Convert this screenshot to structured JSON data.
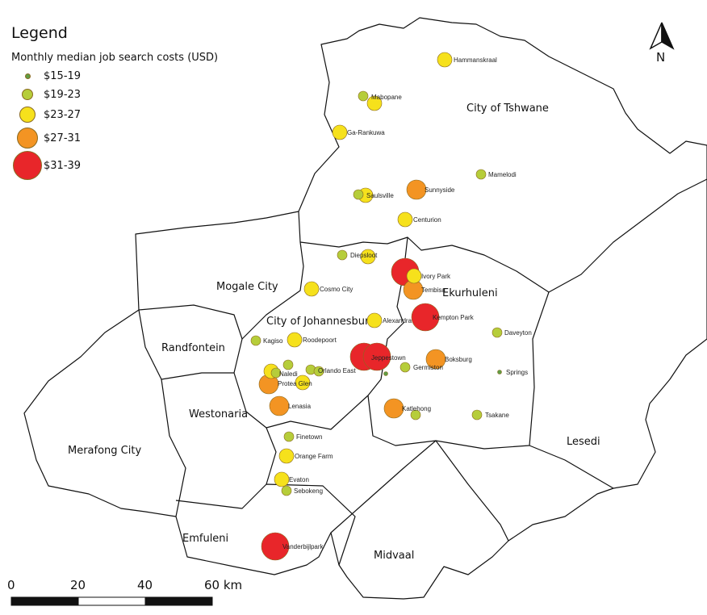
{
  "legend": {
    "title": "Legend",
    "subtitle": "Monthly median job search costs (USD)",
    "classes": [
      {
        "id": 1,
        "label": "$15-19",
        "color": "#5f9e45"
      },
      {
        "id": 2,
        "label": "$19-23",
        "color": "#b6cd3a"
      },
      {
        "id": 3,
        "label": "$23-27",
        "color": "#f6e11c"
      },
      {
        "id": 4,
        "label": "$27-31",
        "color": "#f39423"
      },
      {
        "id": 5,
        "label": "$31-39",
        "color": "#e8262a"
      }
    ]
  },
  "north_arrow": {
    "label": "N",
    "icon": "north-arrow-icon"
  },
  "scale_bar": {
    "ticks": [
      "0",
      "20",
      "40",
      "60 km"
    ]
  },
  "regions": [
    "City of Tshwane",
    "Mogale City",
    "City of Johannesburg",
    "Ekurhuleni",
    "Randfontein",
    "Westonaria",
    "Merafong City",
    "Lesedi",
    "Emfuleni",
    "Midvaal"
  ],
  "places": [
    {
      "name": "Hammanskraal",
      "classes": [
        3
      ]
    },
    {
      "name": "Mabopane",
      "classes": [
        2,
        3
      ]
    },
    {
      "name": "Ga-Rankuwa",
      "classes": [
        3
      ]
    },
    {
      "name": "Saulsville",
      "classes": [
        2,
        3
      ]
    },
    {
      "name": "Sunnyside",
      "classes": [
        4
      ]
    },
    {
      "name": "Mamelodi",
      "classes": [
        2
      ]
    },
    {
      "name": "Centurion",
      "classes": [
        3
      ]
    },
    {
      "name": "Diepsloot",
      "classes": [
        2,
        3
      ]
    },
    {
      "name": "Ivory Park",
      "classes": [
        5,
        3
      ]
    },
    {
      "name": "Tembisa",
      "classes": [
        4
      ]
    },
    {
      "name": "Cosmo City",
      "classes": [
        3
      ]
    },
    {
      "name": "Alexandra",
      "classes": [
        3
      ]
    },
    {
      "name": "Kempton Park",
      "classes": [
        5
      ]
    },
    {
      "name": "Kagiso",
      "classes": [
        2
      ]
    },
    {
      "name": "Roodepoort",
      "classes": [
        3
      ]
    },
    {
      "name": "Daveyton",
      "classes": [
        2
      ]
    },
    {
      "name": "Jeppestown",
      "classes": [
        5,
        5
      ]
    },
    {
      "name": "Boksburg",
      "classes": [
        4
      ]
    },
    {
      "name": "Germiston",
      "classes": [
        2,
        1
      ]
    },
    {
      "name": "Springs",
      "classes": [
        1
      ]
    },
    {
      "name": "Naledi",
      "classes": [
        3,
        2,
        2
      ]
    },
    {
      "name": "Orlando East",
      "classes": [
        2,
        2
      ]
    },
    {
      "name": "Protea Glen",
      "classes": [
        3,
        4
      ]
    },
    {
      "name": "Lenasia",
      "classes": [
        4
      ]
    },
    {
      "name": "Katlehong",
      "classes": [
        4,
        2
      ]
    },
    {
      "name": "Tsakane",
      "classes": [
        2
      ]
    },
    {
      "name": "Finetown",
      "classes": [
        2
      ]
    },
    {
      "name": "Orange Farm",
      "classes": [
        3
      ]
    },
    {
      "name": "Evaton",
      "classes": [
        3
      ]
    },
    {
      "name": "Sebokeng",
      "classes": [
        2
      ]
    },
    {
      "name": "Vanderbijlpark",
      "classes": [
        5
      ]
    }
  ]
}
